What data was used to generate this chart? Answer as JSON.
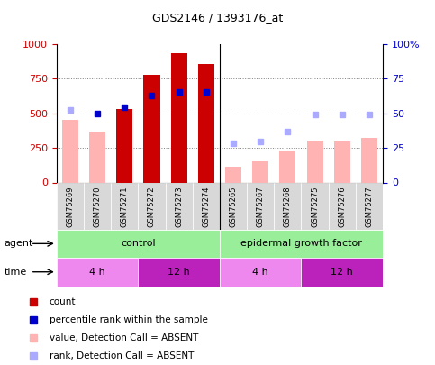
{
  "title": "GDS2146 / 1393176_at",
  "samples": [
    "GSM75269",
    "GSM75270",
    "GSM75271",
    "GSM75272",
    "GSM75273",
    "GSM75274",
    "GSM75265",
    "GSM75267",
    "GSM75268",
    "GSM75275",
    "GSM75276",
    "GSM75277"
  ],
  "bar_heights": [
    0,
    0,
    530,
    775,
    935,
    855,
    0,
    0,
    0,
    0,
    0,
    0
  ],
  "bar_absent_heights": [
    450,
    370,
    0,
    0,
    0,
    0,
    115,
    150,
    225,
    300,
    295,
    320
  ],
  "percentile_rank": [
    null,
    500,
    540,
    630,
    650,
    650,
    null,
    null,
    null,
    null,
    null,
    null
  ],
  "rank_absent": [
    520,
    null,
    null,
    null,
    null,
    null,
    280,
    295,
    365,
    490,
    490,
    490
  ],
  "bar_color": "#cc0000",
  "bar_absent_color": "#ffb3b3",
  "percentile_color": "#0000cc",
  "rank_absent_color": "#aaaaff",
  "ylim_left": [
    0,
    1000
  ],
  "ylim_right": [
    0,
    100
  ],
  "yticks_left": [
    0,
    250,
    500,
    750,
    1000
  ],
  "yticks_right": [
    0,
    25,
    50,
    75,
    100
  ],
  "agent_color": "#99ee99",
  "time_color_light": "#ee88ee",
  "time_color_dark": "#bb22bb",
  "legend_items": [
    {
      "color": "#cc0000",
      "label": "count"
    },
    {
      "color": "#0000cc",
      "label": "percentile rank within the sample"
    },
    {
      "color": "#ffb3b3",
      "label": "value, Detection Call = ABSENT"
    },
    {
      "color": "#aaaaff",
      "label": "rank, Detection Call = ABSENT"
    }
  ]
}
